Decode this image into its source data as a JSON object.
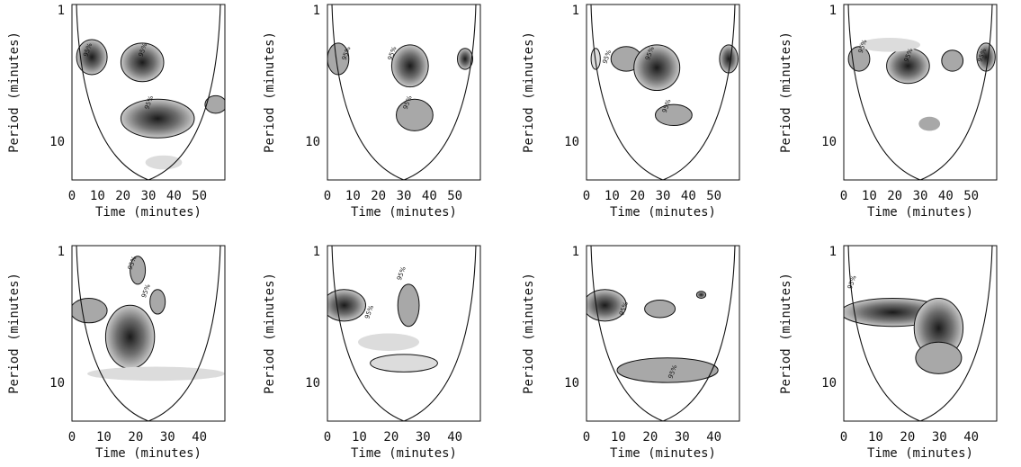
{
  "chart_data": [
    {
      "type": "heatmap",
      "xlabel": "Time (minutes)",
      "ylabel": "Period (minutes)",
      "xlim": [
        0,
        60
      ],
      "x_ticks": [
        "0",
        "10",
        "20",
        "30",
        "40",
        "50"
      ],
      "y_ticks": [
        "1",
        "10"
      ],
      "significance_labels": [
        "95%",
        "95%",
        "95%"
      ]
    },
    {
      "type": "heatmap",
      "xlabel": "Time (minutes)",
      "ylabel": "Period (minutes)",
      "xlim": [
        0,
        60
      ],
      "x_ticks": [
        "0",
        "10",
        "20",
        "30",
        "40",
        "50"
      ],
      "y_ticks": [
        "1",
        "10"
      ],
      "significance_labels": [
        "95%",
        "95%",
        "95%"
      ]
    },
    {
      "type": "heatmap",
      "xlabel": "Time (minutes)",
      "ylabel": "Period (minutes)",
      "xlim": [
        0,
        60
      ],
      "x_ticks": [
        "0",
        "10",
        "20",
        "30",
        "40",
        "50"
      ],
      "y_ticks": [
        "1",
        "10"
      ],
      "significance_labels": [
        "95%",
        "95%",
        "95%"
      ]
    },
    {
      "type": "heatmap",
      "xlabel": "Time (minutes)",
      "ylabel": "Period (minutes)",
      "xlim": [
        0,
        60
      ],
      "x_ticks": [
        "0",
        "10",
        "20",
        "30",
        "40",
        "50"
      ],
      "y_ticks": [
        "1",
        "10"
      ],
      "significance_labels": [
        "95%",
        "95%",
        "95%"
      ]
    },
    {
      "type": "heatmap",
      "xlabel": "Time (minutes)",
      "ylabel": "Period (minutes)",
      "xlim": [
        0,
        48
      ],
      "x_ticks": [
        "0",
        "10",
        "20",
        "30",
        "40"
      ],
      "y_ticks": [
        "1",
        "10"
      ],
      "significance_labels": [
        "95%",
        "95%"
      ]
    },
    {
      "type": "heatmap",
      "xlabel": "Time (minutes)",
      "ylabel": "Period (minutes)",
      "xlim": [
        0,
        48
      ],
      "x_ticks": [
        "0",
        "10",
        "20",
        "30",
        "40"
      ],
      "y_ticks": [
        "1",
        "10"
      ],
      "significance_labels": [
        "95%",
        "95%"
      ]
    },
    {
      "type": "heatmap",
      "xlabel": "Time (minutes)",
      "ylabel": "Period (minutes)",
      "xlim": [
        0,
        48
      ],
      "x_ticks": [
        "0",
        "10",
        "20",
        "30",
        "40"
      ],
      "y_ticks": [
        "1",
        "10"
      ],
      "significance_labels": [
        "95%",
        "95%"
      ]
    },
    {
      "type": "heatmap",
      "xlabel": "Time (minutes)",
      "ylabel": "Period (minutes)",
      "xlim": [
        0,
        48
      ],
      "x_ticks": [
        "0",
        "10",
        "20",
        "30",
        "40"
      ],
      "y_ticks": [
        "1",
        "10"
      ],
      "significance_labels": [
        "95%"
      ]
    }
  ],
  "colors": {
    "line": "#111111",
    "light": "#dcdcdc",
    "mid": "#9a9a9a",
    "dark": "#2a2a2a"
  }
}
